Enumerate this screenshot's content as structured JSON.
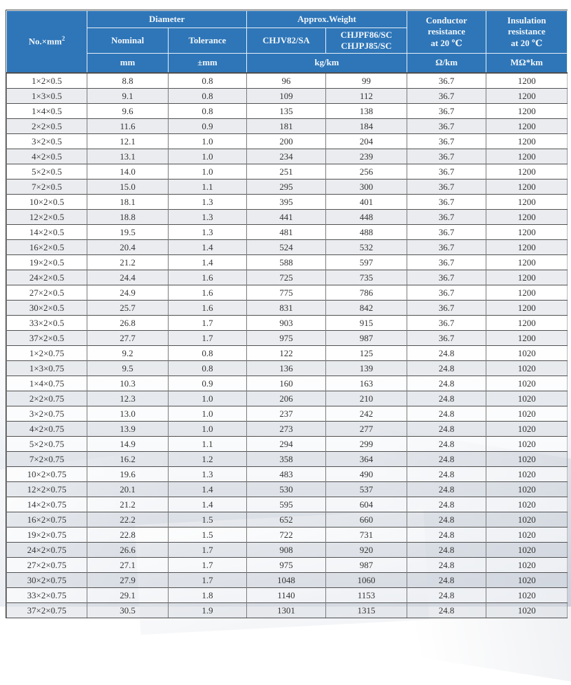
{
  "colors": {
    "header_blue": "#2e76b8",
    "header_text": "#f2f6fb",
    "body_text": "#333333",
    "row_stripe": "#eceef1",
    "grid_dark": "#4e4e4e",
    "grid_mid": "#7a7a7a"
  },
  "table": {
    "headers": {
      "col_no_base": "No.×mm",
      "col_no_sup": "2",
      "diameter": "Diameter",
      "nominal": "Nominal",
      "tolerance": "Tolerance",
      "approx_weight": "Approx.Weight",
      "weight_col1": "CHJV82/SA",
      "weight_col2": "CHJPF86/SC\nCHJPJ85/SC",
      "conductor": "Conductor\nresistance\nat 20 ℃",
      "insulation": "Insulation\nresistance\nat 20 ℃"
    },
    "units": {
      "nominal": "mm",
      "tolerance": "±mm",
      "weight": "kg/km",
      "conductor": "Ω/km",
      "insulation": "MΩ*km"
    },
    "rows": [
      [
        "1×2×0.5",
        "8.8",
        "0.8",
        "96",
        "99",
        "36.7",
        "1200"
      ],
      [
        "1×3×0.5",
        "9.1",
        "0.8",
        "109",
        "112",
        "36.7",
        "1200"
      ],
      [
        "1×4×0.5",
        "9.6",
        "0.8",
        "135",
        "138",
        "36.7",
        "1200"
      ],
      [
        "2×2×0.5",
        "11.6",
        "0.9",
        "181",
        "184",
        "36.7",
        "1200"
      ],
      [
        "3×2×0.5",
        "12.1",
        "1.0",
        "200",
        "204",
        "36.7",
        "1200"
      ],
      [
        "4×2×0.5",
        "13.1",
        "1.0",
        "234",
        "239",
        "36.7",
        "1200"
      ],
      [
        "5×2×0.5",
        "14.0",
        "1.0",
        "251",
        "256",
        "36.7",
        "1200"
      ],
      [
        "7×2×0.5",
        "15.0",
        "1.1",
        "295",
        "300",
        "36.7",
        "1200"
      ],
      [
        "10×2×0.5",
        "18.1",
        "1.3",
        "395",
        "401",
        "36.7",
        "1200"
      ],
      [
        "12×2×0.5",
        "18.8",
        "1.3",
        "441",
        "448",
        "36.7",
        "1200"
      ],
      [
        "14×2×0.5",
        "19.5",
        "1.3",
        "481",
        "488",
        "36.7",
        "1200"
      ],
      [
        "16×2×0.5",
        "20.4",
        "1.4",
        "524",
        "532",
        "36.7",
        "1200"
      ],
      [
        "19×2×0.5",
        "21.2",
        "1.4",
        "588",
        "597",
        "36.7",
        "1200"
      ],
      [
        "24×2×0.5",
        "24.4",
        "1.6",
        "725",
        "735",
        "36.7",
        "1200"
      ],
      [
        "27×2×0.5",
        "24.9",
        "1.6",
        "775",
        "786",
        "36.7",
        "1200"
      ],
      [
        "30×2×0.5",
        "25.7",
        "1.6",
        "831",
        "842",
        "36.7",
        "1200"
      ],
      [
        "33×2×0.5",
        "26.8",
        "1.7",
        "903",
        "915",
        "36.7",
        "1200"
      ],
      [
        "37×2×0.5",
        "27.7",
        "1.7",
        "975",
        "987",
        "36.7",
        "1200"
      ],
      [
        "1×2×0.75",
        "9.2",
        "0.8",
        "122",
        "125",
        "24.8",
        "1020"
      ],
      [
        "1×3×0.75",
        "9.5",
        "0.8",
        "136",
        "139",
        "24.8",
        "1020"
      ],
      [
        "1×4×0.75",
        "10.3",
        "0.9",
        "160",
        "163",
        "24.8",
        "1020"
      ],
      [
        "2×2×0.75",
        "12.3",
        "1.0",
        "206",
        "210",
        "24.8",
        "1020"
      ],
      [
        "3×2×0.75",
        "13.0",
        "1.0",
        "237",
        "242",
        "24.8",
        "1020"
      ],
      [
        "4×2×0.75",
        "13.9",
        "1.0",
        "273",
        "277",
        "24.8",
        "1020"
      ],
      [
        "5×2×0.75",
        "14.9",
        "1.1",
        "294",
        "299",
        "24.8",
        "1020"
      ],
      [
        "7×2×0.75",
        "16.2",
        "1.2",
        "358",
        "364",
        "24.8",
        "1020"
      ],
      [
        "10×2×0.75",
        "19.6",
        "1.3",
        "483",
        "490",
        "24.8",
        "1020"
      ],
      [
        "12×2×0.75",
        "20.1",
        "1.4",
        "530",
        "537",
        "24.8",
        "1020"
      ],
      [
        "14×2×0.75",
        "21.2",
        "1.4",
        "595",
        "604",
        "24.8",
        "1020"
      ],
      [
        "16×2×0.75",
        "22.2",
        "1.5",
        "652",
        "660",
        "24.8",
        "1020"
      ],
      [
        "19×2×0.75",
        "22.8",
        "1.5",
        "722",
        "731",
        "24.8",
        "1020"
      ],
      [
        "24×2×0.75",
        "26.6",
        "1.7",
        "908",
        "920",
        "24.8",
        "1020"
      ],
      [
        "27×2×0.75",
        "27.1",
        "1.7",
        "975",
        "987",
        "24.8",
        "1020"
      ],
      [
        "30×2×0.75",
        "27.9",
        "1.7",
        "1048",
        "1060",
        "24.8",
        "1020"
      ],
      [
        "33×2×0.75",
        "29.1",
        "1.8",
        "1140",
        "1153",
        "24.8",
        "1020"
      ],
      [
        "37×2×0.75",
        "30.5",
        "1.9",
        "1301",
        "1315",
        "24.8",
        "1020"
      ]
    ]
  }
}
